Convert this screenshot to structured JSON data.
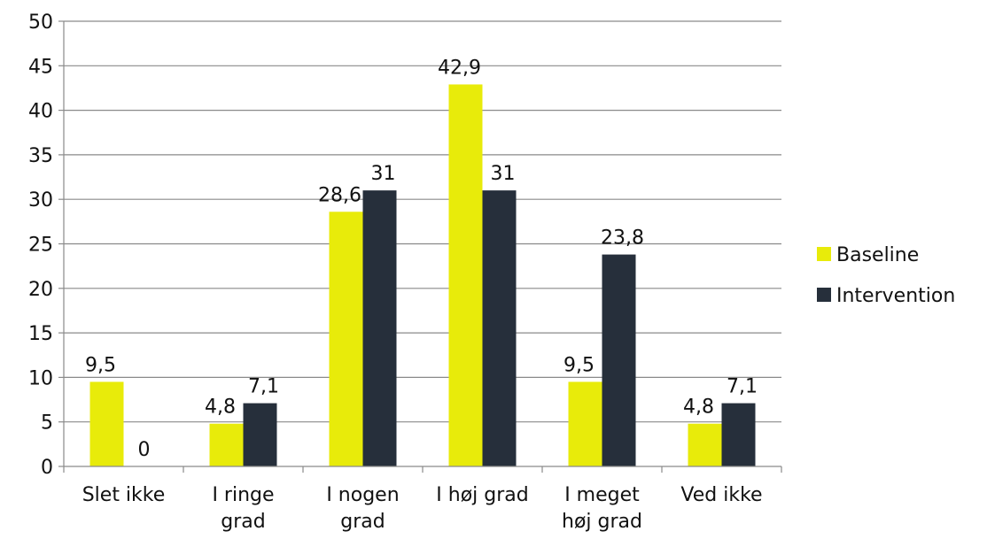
{
  "chart_data": {
    "type": "bar",
    "categories": [
      [
        "Slet ikke"
      ],
      [
        "I ringe",
        "grad"
      ],
      [
        "I nogen",
        "grad"
      ],
      [
        "I høj grad"
      ],
      [
        "I meget",
        "høj grad"
      ],
      [
        "Ved ikke"
      ]
    ],
    "series": [
      {
        "name": "Baseline",
        "values": [
          9.5,
          4.8,
          28.6,
          42.9,
          9.5,
          4.8
        ],
        "labels": [
          "9,5",
          "4,8",
          "28,6",
          "42,9",
          "9,5",
          "4,8"
        ],
        "color": "#e8eb0a"
      },
      {
        "name": "Intervention",
        "values": [
          0,
          7.1,
          31,
          31,
          23.8,
          7.1
        ],
        "labels": [
          "0",
          "7,1",
          "31",
          "31",
          "23,8",
          "7,1"
        ],
        "color": "#262f3b"
      }
    ],
    "ylim": [
      0,
      50
    ],
    "yticks": [
      "0",
      "5",
      "10",
      "15",
      "20",
      "25",
      "30",
      "35",
      "40",
      "45",
      "50"
    ],
    "grid": true,
    "legend_position": "right"
  }
}
